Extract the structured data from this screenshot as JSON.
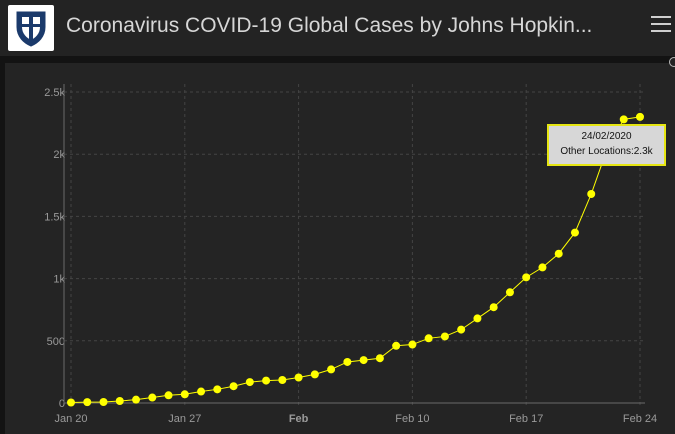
{
  "header": {
    "title": "Coronavirus COVID-19 Global Cases by Johns Hopkin...",
    "logo_icon": "university-shield-icon",
    "menu_icon": "hamburger-menu-icon"
  },
  "colors": {
    "series": "#ffff00",
    "background": "#242424",
    "grid": "#444444",
    "axis_text": "#9a9a9a"
  },
  "chart_data": {
    "type": "line",
    "series": [
      {
        "name": "Other Locations",
        "x": [
          "2020-01-20",
          "2020-01-21",
          "2020-01-22",
          "2020-01-23",
          "2020-01-24",
          "2020-01-25",
          "2020-01-26",
          "2020-01-27",
          "2020-01-28",
          "2020-01-29",
          "2020-01-30",
          "2020-01-31",
          "2020-02-01",
          "2020-02-02",
          "2020-02-03",
          "2020-02-04",
          "2020-02-05",
          "2020-02-06",
          "2020-02-07",
          "2020-02-08",
          "2020-02-09",
          "2020-02-10",
          "2020-02-11",
          "2020-02-12",
          "2020-02-13",
          "2020-02-14",
          "2020-02-15",
          "2020-02-16",
          "2020-02-17",
          "2020-02-18",
          "2020-02-19",
          "2020-02-20",
          "2020-02-21",
          "2020-02-22",
          "2020-02-23",
          "2020-02-24"
        ],
        "values": [
          4,
          7,
          8,
          16,
          27,
          44,
          62,
          70,
          92,
          110,
          135,
          168,
          180,
          185,
          205,
          230,
          270,
          330,
          345,
          360,
          460,
          470,
          520,
          535,
          590,
          680,
          770,
          890,
          1010,
          1090,
          1200,
          1370,
          1680,
          2050,
          2280,
          2300
        ]
      }
    ],
    "xticks": [
      "Jan 20",
      "Jan 27",
      "Feb",
      "Feb 10",
      "Feb 17",
      "Feb 24"
    ],
    "yticks": [
      "0",
      "500",
      "1k",
      "1.5k",
      "2k",
      "2.5k"
    ],
    "ylim": [
      0,
      2500
    ],
    "grid": true,
    "tooltip": {
      "date": "24/02/2020",
      "label": "Other Locations:2.3k"
    }
  }
}
